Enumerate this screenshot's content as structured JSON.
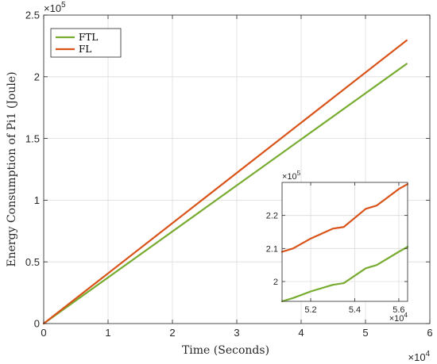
{
  "chart_data": [
    {
      "type": "line",
      "role": "main",
      "title": "",
      "xlabel": "Time (Seconds)",
      "ylabel": "Energy Consumption of Pi1 (Joule)",
      "x_multiplier": "×10",
      "x_exponent": "4",
      "y_multiplier": "×10",
      "y_exponent": "5",
      "xlim": [
        0,
        6
      ],
      "ylim": [
        0,
        2.5
      ],
      "xticks": [
        0,
        1,
        2,
        3,
        4,
        5,
        6
      ],
      "xtick_labels": [
        "0",
        "1",
        "2",
        "3",
        "4",
        "5",
        "6"
      ],
      "yticks": [
        0,
        0.5,
        1,
        1.5,
        2,
        2.5
      ],
      "ytick_labels": [
        "0",
        "0.5",
        "1",
        "1.5",
        "2",
        "2.5"
      ],
      "grid": true,
      "legend_position": "top-left",
      "series": [
        {
          "name": "FTL",
          "color": "#77AC30",
          "x": [
            0,
            5.64
          ],
          "y": [
            0,
            2.105
          ]
        },
        {
          "name": "FL",
          "color": "#D95319",
          "x": [
            0,
            5.64
          ],
          "y": [
            0,
            2.295
          ]
        }
      ]
    },
    {
      "type": "line",
      "role": "inset",
      "x_multiplier": "×10",
      "x_exponent": "4",
      "y_multiplier": "×10",
      "y_exponent": "5",
      "xlim": [
        5.07,
        5.64
      ],
      "ylim": [
        1.94,
        2.3
      ],
      "xticks": [
        5.2,
        5.4,
        5.6
      ],
      "xtick_labels": [
        "5.2",
        "5.4",
        "5.6"
      ],
      "yticks": [
        2,
        2.1,
        2.2
      ],
      "ytick_labels": [
        "2",
        "2.1",
        "2.2"
      ],
      "grid": true,
      "series": [
        {
          "name": "FTL",
          "color": "#77AC30",
          "x": [
            5.07,
            5.12,
            5.2,
            5.3,
            5.35,
            5.45,
            5.5,
            5.6,
            5.64
          ],
          "y": [
            1.94,
            1.95,
            1.97,
            1.99,
            1.995,
            2.04,
            2.05,
            2.09,
            2.105
          ]
        },
        {
          "name": "FL",
          "color": "#D95319",
          "x": [
            5.07,
            5.12,
            5.2,
            5.3,
            5.35,
            5.45,
            5.5,
            5.6,
            5.64
          ],
          "y": [
            2.09,
            2.1,
            2.13,
            2.16,
            2.165,
            2.22,
            2.23,
            2.28,
            2.295
          ]
        }
      ]
    }
  ]
}
